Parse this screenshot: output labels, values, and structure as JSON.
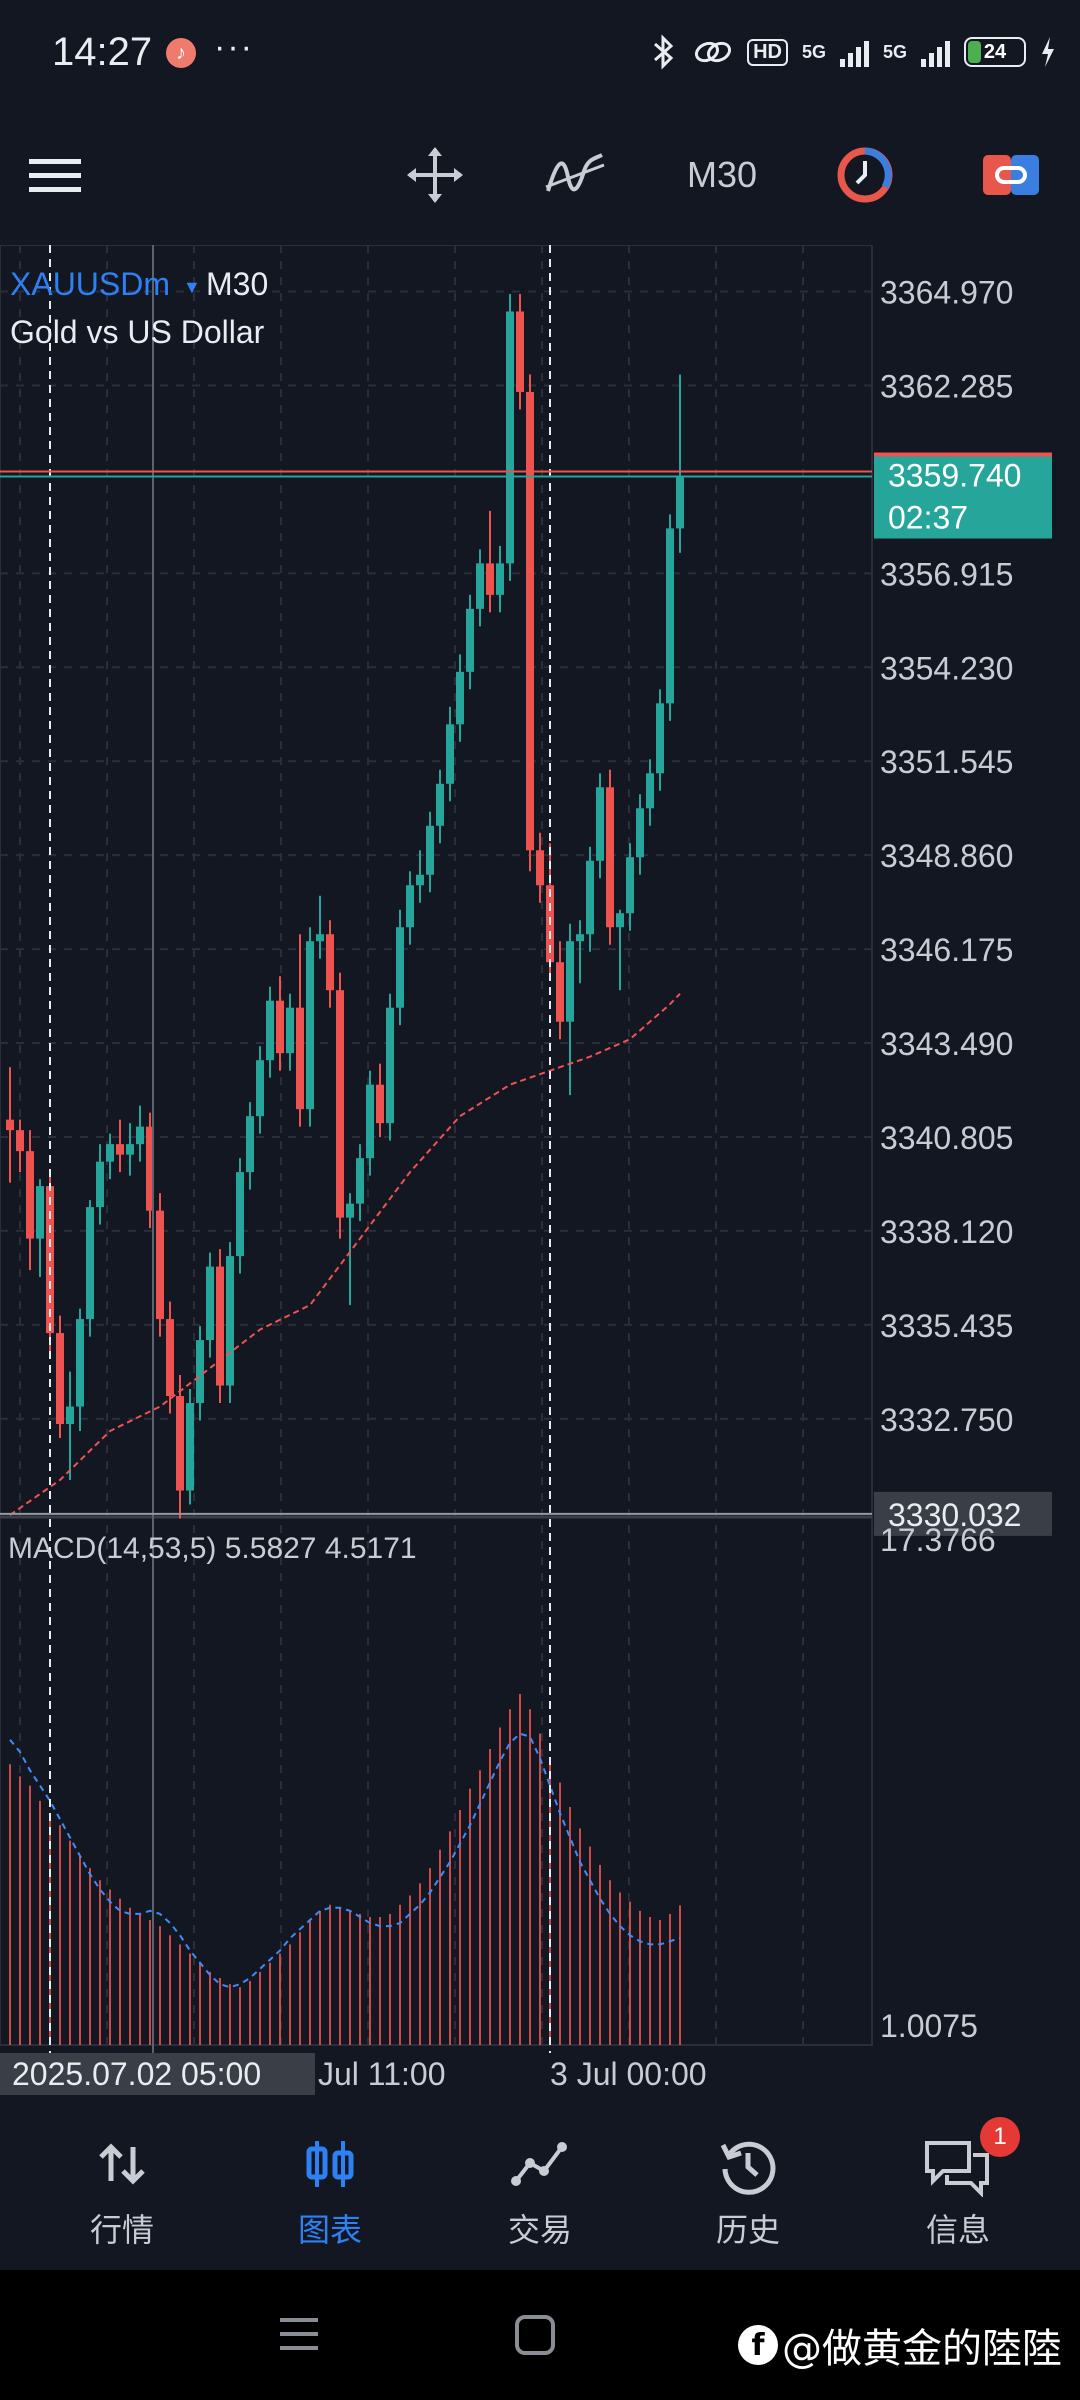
{
  "status_bar": {
    "time": "14:27",
    "network_badge": "HD",
    "signal_labels": [
      "5G",
      "5G"
    ],
    "battery": "24",
    "battery_level": 0.24
  },
  "toolbar": {
    "menu_icon": "hamburger-menu-icon",
    "crosshair_icon": "move-crosshair-icon",
    "indicator_icon": "indicator-icon",
    "timeframe": "M30",
    "clock_icon": "chart-timer-icon",
    "trade_icon": "one-click-trading-icon"
  },
  "chart": {
    "symbol": "XAUUSDm",
    "timeframe": "M30",
    "description": "Gold vs US Dollar",
    "current_price": "3359.740",
    "countdown": "02:37",
    "crosshair_price": "3330.032",
    "crosshair_time": "2025.07.02 05:00",
    "price_axis": [
      "3364.970",
      "3362.285",
      "3356.915",
      "3354.230",
      "3351.545",
      "3348.860",
      "3346.175",
      "3343.490",
      "3340.805",
      "3338.120",
      "3335.435",
      "3332.750"
    ],
    "time_axis": [
      "Jul 11:00",
      "3 Jul 00:00"
    ],
    "macd_label": "MACD(14,53,5) 5.5827 4.5171",
    "macd_max": "17.3766",
    "macd_min": "1.0075",
    "colors": {
      "bull": "#26a69a",
      "bear": "#ef5350",
      "ma": "#ef5350",
      "macd_signal": "#3d8bfd",
      "background": "#131722"
    }
  },
  "chart_data": {
    "type": "candlestick",
    "symbol": "XAUUSDm",
    "timeframe": "M30",
    "ylim": [
      3330.0,
      3366.3
    ],
    "candles": [
      [
        3341.3,
        3342.8,
        3339.5,
        3341.0
      ],
      [
        3341.0,
        3341.3,
        3339.8,
        3340.4
      ],
      [
        3340.4,
        3341.0,
        3337.0,
        3337.9
      ],
      [
        3337.9,
        3339.6,
        3336.8,
        3339.4
      ],
      [
        3339.4,
        3339.8,
        3334.5,
        3335.2
      ],
      [
        3335.2,
        3335.7,
        3332.2,
        3332.6
      ],
      [
        3332.6,
        3334.1,
        3331.0,
        3333.1
      ],
      [
        3333.1,
        3335.9,
        3332.4,
        3335.6
      ],
      [
        3335.6,
        3339.0,
        3335.1,
        3338.8
      ],
      [
        3338.8,
        3340.6,
        3338.3,
        3340.1
      ],
      [
        3340.1,
        3340.9,
        3339.6,
        3340.6
      ],
      [
        3340.6,
        3341.3,
        3339.8,
        3340.3
      ],
      [
        3340.3,
        3341.2,
        3339.7,
        3340.6
      ],
      [
        3340.6,
        3341.7,
        3340.1,
        3341.1
      ],
      [
        3341.1,
        3341.5,
        3338.2,
        3338.7
      ],
      [
        3338.7,
        3339.2,
        3335.1,
        3335.6
      ],
      [
        3335.6,
        3336.1,
        3332.9,
        3333.4
      ],
      [
        3333.4,
        3334.0,
        3329.9,
        3330.7
      ],
      [
        3330.7,
        3333.6,
        3330.3,
        3333.2
      ],
      [
        3333.2,
        3335.4,
        3332.7,
        3335.0
      ],
      [
        3335.0,
        3337.5,
        3334.5,
        3337.1
      ],
      [
        3337.1,
        3337.6,
        3333.2,
        3333.7
      ],
      [
        3333.7,
        3337.8,
        3333.2,
        3337.4
      ],
      [
        3337.4,
        3340.2,
        3336.9,
        3339.8
      ],
      [
        3339.8,
        3341.8,
        3339.3,
        3341.4
      ],
      [
        3341.4,
        3343.4,
        3340.9,
        3343.0
      ],
      [
        3343.0,
        3345.1,
        3342.5,
        3344.7
      ],
      [
        3344.7,
        3345.4,
        3342.7,
        3343.2
      ],
      [
        3343.2,
        3344.9,
        3342.7,
        3344.5
      ],
      [
        3344.5,
        3346.6,
        3341.1,
        3341.6
      ],
      [
        3341.6,
        3346.8,
        3341.1,
        3346.4
      ],
      [
        3346.4,
        3347.7,
        3345.9,
        3346.6
      ],
      [
        3346.6,
        3347.0,
        3344.5,
        3345.0
      ],
      [
        3345.0,
        3345.5,
        3337.9,
        3338.5
      ],
      [
        3338.5,
        3339.2,
        3336.0,
        3338.9
      ],
      [
        3338.9,
        3340.6,
        3338.4,
        3340.2
      ],
      [
        3340.2,
        3342.7,
        3339.7,
        3342.3
      ],
      [
        3342.3,
        3342.9,
        3340.8,
        3341.2
      ],
      [
        3341.2,
        3344.9,
        3340.7,
        3344.5
      ],
      [
        3344.5,
        3347.3,
        3344.0,
        3346.8
      ],
      [
        3346.8,
        3348.4,
        3346.3,
        3348.0
      ],
      [
        3348.0,
        3349.0,
        3347.5,
        3348.3
      ],
      [
        3348.3,
        3350.1,
        3347.8,
        3349.7
      ],
      [
        3349.7,
        3351.3,
        3349.2,
        3350.9
      ],
      [
        3350.9,
        3353.1,
        3350.4,
        3352.6
      ],
      [
        3352.6,
        3354.6,
        3352.1,
        3354.1
      ],
      [
        3354.1,
        3356.3,
        3353.6,
        3355.9
      ],
      [
        3355.9,
        3357.6,
        3355.4,
        3357.2
      ],
      [
        3357.2,
        3358.7,
        3355.8,
        3356.3
      ],
      [
        3356.3,
        3357.7,
        3355.8,
        3357.2
      ],
      [
        3357.2,
        3364.9,
        3356.7,
        3364.4
      ],
      [
        3364.4,
        3364.9,
        3361.6,
        3362.1
      ],
      [
        3362.1,
        3362.6,
        3348.4,
        3349.0
      ],
      [
        3349.0,
        3349.5,
        3347.5,
        3348.0
      ],
      [
        3348.0,
        3349.2,
        3345.3,
        3345.8
      ],
      [
        3345.8,
        3346.4,
        3343.6,
        3344.1
      ],
      [
        3344.1,
        3346.9,
        3342.0,
        3346.4
      ],
      [
        3346.4,
        3347.0,
        3345.2,
        3346.6
      ],
      [
        3346.6,
        3349.1,
        3346.1,
        3348.7
      ],
      [
        3348.7,
        3351.2,
        3348.2,
        3350.8
      ],
      [
        3350.8,
        3351.3,
        3346.3,
        3346.8
      ],
      [
        3346.8,
        3347.3,
        3345.0,
        3347.2
      ],
      [
        3347.2,
        3349.2,
        3346.7,
        3348.8
      ],
      [
        3348.8,
        3350.6,
        3348.3,
        3350.2
      ],
      [
        3350.2,
        3351.6,
        3349.7,
        3351.2
      ],
      [
        3351.2,
        3353.6,
        3350.7,
        3353.2
      ],
      [
        3353.2,
        3358.6,
        3352.7,
        3358.2
      ],
      [
        3358.2,
        3362.6,
        3357.5,
        3359.7
      ]
    ],
    "moving_average": [
      [
        0,
        3330.0
      ],
      [
        5,
        3331.0
      ],
      [
        10,
        3332.4
      ],
      [
        15,
        3333.1
      ],
      [
        20,
        3334.2
      ],
      [
        25,
        3335.3
      ],
      [
        30,
        3336.0
      ],
      [
        35,
        3337.9
      ],
      [
        40,
        3339.8
      ],
      [
        45,
        3341.4
      ],
      [
        50,
        3342.3
      ],
      [
        53,
        3342.6
      ],
      [
        58,
        3343.1
      ],
      [
        62,
        3343.6
      ],
      [
        66,
        3344.6
      ],
      [
        67,
        3344.9
      ]
    ],
    "macd": {
      "histogram": [
        10.2,
        9.8,
        9.5,
        9.0,
        8.6,
        8.2,
        7.7,
        7.2,
        6.8,
        6.4,
        6.1,
        5.8,
        5.5,
        5.3,
        5.1,
        4.9,
        4.6,
        4.3,
        4.0,
        3.7,
        3.4,
        3.2,
        3.0,
        2.9,
        3.1,
        3.4,
        3.7,
        4.0,
        4.3,
        4.7,
        5.1,
        5.4,
        5.6,
        5.5,
        5.4,
        5.3,
        5.2,
        5.2,
        5.3,
        5.6,
        5.9,
        6.3,
        6.8,
        7.4,
        8.0,
        8.7,
        9.4,
        10.0,
        10.7,
        11.4,
        12.0,
        12.5,
        12.0,
        11.2,
        10.4,
        9.6,
        8.8,
        8.1,
        7.5,
        6.9,
        6.4,
        6.0,
        5.7,
        5.4,
        5.2,
        5.1,
        5.3,
        5.58
      ],
      "signal": [
        11.0,
        10.6,
        10.0,
        9.5,
        9.0,
        8.4,
        7.8,
        7.2,
        6.6,
        6.1,
        5.7,
        5.4,
        5.3,
        5.3,
        5.4,
        5.3,
        5.0,
        4.6,
        4.1,
        3.7,
        3.3,
        3.0,
        2.9,
        3.0,
        3.2,
        3.5,
        3.8,
        4.1,
        4.5,
        4.8,
        5.1,
        5.4,
        5.5,
        5.5,
        5.4,
        5.2,
        5.0,
        4.9,
        4.9,
        5.0,
        5.3,
        5.6,
        6.0,
        6.5,
        7.0,
        7.6,
        8.2,
        8.9,
        9.6,
        10.3,
        10.9,
        11.2,
        11.1,
        10.4,
        9.5,
        8.6,
        7.8,
        7.0,
        6.4,
        5.8,
        5.3,
        4.9,
        4.6,
        4.4,
        4.3,
        4.3,
        4.4,
        4.52
      ],
      "ylim": [
        1.0075,
        17.3766
      ]
    }
  },
  "bottom_nav": [
    {
      "label": "行情",
      "icon": "quotes-icon",
      "active": false
    },
    {
      "label": "图表",
      "icon": "chart-icon",
      "active": true
    },
    {
      "label": "交易",
      "icon": "trade-icon",
      "active": false
    },
    {
      "label": "历史",
      "icon": "history-icon",
      "active": false
    },
    {
      "label": "信息",
      "icon": "messages-icon",
      "active": false,
      "badge": "1"
    }
  ],
  "watermark": "@做黄金的陸陸"
}
